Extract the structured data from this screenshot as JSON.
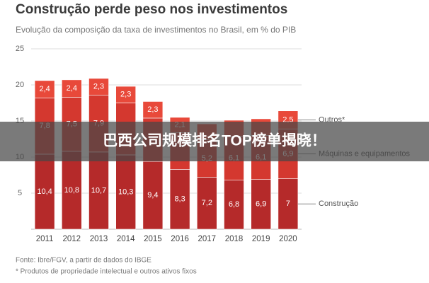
{
  "chart_data": {
    "type": "stacked_bar",
    "title": "Construção perde peso nos investimentos",
    "subtitle": "Evolução da composição da taxa de investimentos no Brasil, em % do PIB",
    "categories": [
      "2011",
      "2012",
      "2013",
      "2014",
      "2015",
      "2016",
      "2017",
      "2018",
      "2019",
      "2020"
    ],
    "series": [
      {
        "name": "Construção",
        "color": "#b52a2a",
        "values": [
          10.4,
          10.8,
          10.7,
          10.3,
          9.4,
          8.3,
          7.2,
          6.8,
          6.9,
          7
        ],
        "value_labels": [
          "10,4",
          "10,8",
          "10,7",
          "10,3",
          "9,4",
          "8,3",
          "7,2",
          "6,8",
          "6,9",
          "7"
        ]
      },
      {
        "name": "Máquinas e equipamentos",
        "color": "#d4382f",
        "values": [
          7.8,
          7.5,
          7.9,
          7.2,
          6.0,
          5.1,
          5.2,
          6.1,
          6.1,
          6.9
        ],
        "value_labels": [
          "7,8",
          "7,5",
          "7,9",
          null,
          null,
          null,
          "5,2",
          "6,1",
          "6,1",
          "6,9"
        ]
      },
      {
        "name": "Outros*",
        "color": "#e8493a",
        "values": [
          2.4,
          2.4,
          2.3,
          2.3,
          2.3,
          2.1,
          2.2,
          2.2,
          2.3,
          2.5
        ],
        "value_labels": [
          "2,4",
          "2,4",
          "2,3",
          "2,3",
          "2,3",
          "2,1",
          null,
          null,
          null,
          "2,5"
        ]
      }
    ],
    "ylim": [
      0,
      25
    ],
    "yticks": [
      5,
      10,
      15,
      20,
      25
    ],
    "grid": true,
    "notes": [
      "Fonte: Ibre/FGV, a partir de dados do IBGE",
      "* Produtos de propriedade intelectual e outros ativos fixos"
    ]
  },
  "banner": {
    "text": "巴西公司规模排名TOP榜单揭晓！"
  }
}
